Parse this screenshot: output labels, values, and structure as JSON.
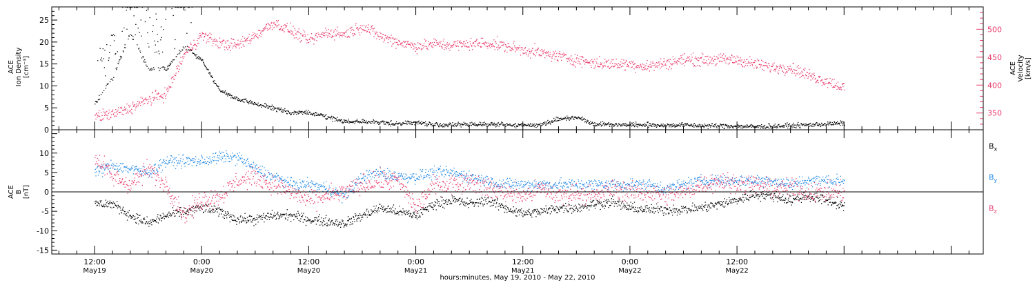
{
  "chart_data": [
    {
      "type": "scatter",
      "panel": "top",
      "ylabel_left": [
        "ACE",
        "Ion Density",
        "[cm⁻³]"
      ],
      "ylabel_right": [
        "ACE",
        "Velocity",
        "[km/s]"
      ],
      "ylim_left": [
        0,
        28
      ],
      "yticks_left": [
        "0",
        "5",
        "10",
        "15",
        "20",
        "25"
      ],
      "ylim_right": [
        320,
        540
      ],
      "yticks_right": [
        "350",
        "400",
        "450",
        "500"
      ],
      "series": [
        {
          "axis": "left",
          "color": "#000000",
          "x": [
            0,
            2,
            4,
            6,
            8,
            10,
            12,
            14,
            16,
            18,
            20,
            22,
            24,
            26,
            28,
            30,
            32,
            34,
            36,
            38,
            40,
            42,
            44,
            46,
            48,
            50,
            52,
            54,
            56,
            58,
            60,
            62,
            64,
            66,
            68,
            70,
            72,
            74,
            76,
            78,
            80,
            82,
            84
          ],
          "y": [
            6,
            12,
            22,
            14,
            14,
            19,
            16,
            9,
            7,
            6,
            5,
            4,
            4,
            3,
            2,
            2,
            1.7,
            1.5,
            1.8,
            1.2,
            1.2,
            1.3,
            1.4,
            1.2,
            1.1,
            1.3,
            2.5,
            3,
            1.4,
            1.3,
            1.2,
            1.2,
            1.1,
            1.2,
            1.0,
            1.0,
            0.9,
            0.8,
            0.9,
            1.0,
            1.2,
            1.4,
            1.6
          ],
          "noise": 0.45,
          "spikes": [
            [
              1.5,
              8,
              7
            ],
            [
              4.2,
              10,
              8
            ],
            [
              6.8,
              8,
              7
            ],
            [
              9.8,
              12,
              11
            ]
          ]
        },
        {
          "axis": "right",
          "color": "#e8386a",
          "x": [
            0,
            2,
            4,
            6,
            8,
            10,
            12,
            14,
            16,
            18,
            20,
            22,
            24,
            26,
            28,
            30,
            32,
            34,
            36,
            38,
            40,
            42,
            44,
            46,
            48,
            50,
            52,
            54,
            56,
            58,
            60,
            62,
            64,
            66,
            68,
            70,
            72,
            74,
            76,
            78,
            80,
            82,
            84
          ],
          "y": [
            345,
            348,
            360,
            375,
            385,
            455,
            490,
            475,
            472,
            490,
            512,
            498,
            480,
            495,
            492,
            506,
            488,
            478,
            470,
            474,
            472,
            474,
            476,
            470,
            464,
            458,
            452,
            446,
            440,
            438,
            438,
            434,
            440,
            446,
            446,
            446,
            446,
            438,
            432,
            432,
            418,
            408,
            396
          ],
          "noise": 9
        }
      ]
    },
    {
      "type": "scatter",
      "panel": "bottom",
      "ylabel_left": [
        "ACE",
        "B",
        "[nT]"
      ],
      "ylim": [
        -16,
        16
      ],
      "yticks": [
        "-15",
        "-10",
        "-5",
        "0",
        "5",
        "10"
      ],
      "zero_line": true,
      "legend": [
        "Bx",
        "By",
        "Bz"
      ],
      "legend_placement": "right",
      "series": [
        {
          "name": "Bx",
          "color": "#000000",
          "x": [
            0,
            2,
            4,
            6,
            8,
            10,
            12,
            14,
            16,
            18,
            20,
            22,
            24,
            26,
            28,
            30,
            32,
            34,
            36,
            38,
            40,
            42,
            44,
            46,
            48,
            50,
            52,
            54,
            56,
            58,
            60,
            62,
            64,
            66,
            68,
            70,
            72,
            74,
            76,
            78,
            80,
            82,
            84
          ],
          "y": [
            -3,
            -3,
            -6,
            -8,
            -6,
            -5,
            -4,
            -5,
            -7,
            -7,
            -6,
            -6,
            -7,
            -7.5,
            -8,
            -6,
            -4,
            -5,
            -6,
            -3,
            -2,
            -3,
            -2,
            -4,
            -5.5,
            -5,
            -4,
            -4,
            -3,
            -2.5,
            -4,
            -4.5,
            -4.5,
            -4.5,
            -4,
            -3,
            -2,
            -0.5,
            -1,
            -2,
            -1,
            -2,
            -3.5
          ],
          "noise": 1.1
        },
        {
          "name": "By",
          "color": "#1e88e5",
          "x": [
            0,
            2,
            4,
            6,
            8,
            10,
            12,
            14,
            16,
            18,
            20,
            22,
            24,
            26,
            28,
            30,
            32,
            34,
            36,
            38,
            40,
            42,
            44,
            46,
            48,
            50,
            52,
            54,
            56,
            58,
            60,
            62,
            64,
            66,
            68,
            70,
            72,
            74,
            76,
            78,
            80,
            82,
            84
          ],
          "y": [
            5,
            7,
            6,
            5,
            8,
            8,
            8,
            9,
            9,
            6,
            4,
            2,
            2,
            1,
            -1,
            4,
            5,
            4,
            4,
            5,
            5,
            4,
            3,
            2,
            2,
            2,
            2,
            2,
            2,
            2,
            2,
            2,
            1,
            2,
            3,
            3,
            3,
            3,
            3,
            2,
            3,
            3,
            3
          ],
          "noise": 1.3
        },
        {
          "name": "Bz",
          "color": "#e8386a",
          "x": [
            0,
            2,
            4,
            6,
            8,
            10,
            12,
            14,
            16,
            18,
            20,
            22,
            24,
            26,
            28,
            30,
            32,
            34,
            36,
            38,
            40,
            42,
            44,
            46,
            48,
            50,
            52,
            54,
            56,
            58,
            60,
            62,
            64,
            66,
            68,
            70,
            72,
            74,
            76,
            78,
            80,
            82,
            84
          ],
          "y": [
            9,
            4,
            2,
            6,
            2,
            -6,
            -2,
            -1,
            3,
            4,
            2,
            0,
            -2,
            -1,
            0,
            2,
            3,
            3,
            -4,
            2,
            2,
            3,
            1,
            0,
            -1,
            1,
            -1,
            0,
            -1,
            1,
            0,
            0,
            -1,
            0,
            2,
            3,
            2,
            2,
            1,
            1,
            0,
            0,
            0
          ],
          "noise": 2.1
        }
      ]
    }
  ],
  "xaxis": {
    "xlim": [
      -4.8,
      99.6
    ],
    "ticks": [
      {
        "x": 0,
        "time": "12:00",
        "date": "May19"
      },
      {
        "x": 12,
        "time": "0:00",
        "date": "May20"
      },
      {
        "x": 24,
        "time": "12:00",
        "date": "May20"
      },
      {
        "x": 36,
        "time": "0:00",
        "date": "May21"
      },
      {
        "x": 48,
        "time": "12:00",
        "date": "May21"
      },
      {
        "x": 60,
        "time": "0:00",
        "date": "May22"
      },
      {
        "x": 72,
        "time": "12:00",
        "date": "May22"
      }
    ],
    "label": "hours:minutes, May 19, 2010 - May 22, 2010"
  }
}
